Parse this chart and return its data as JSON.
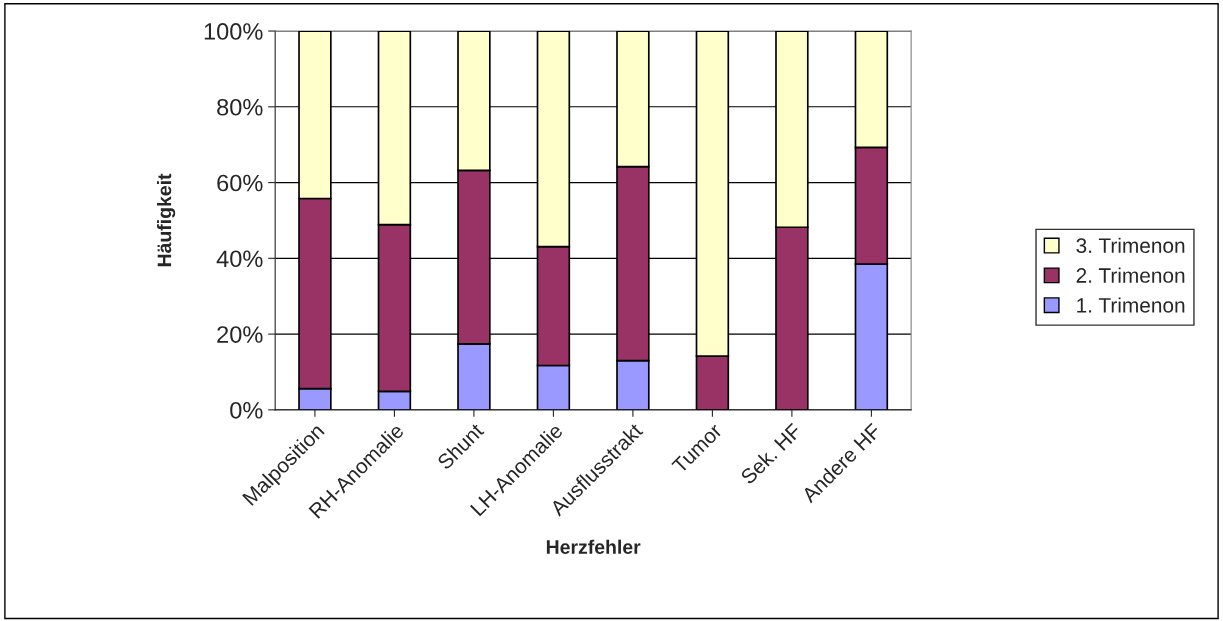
{
  "chart_data": {
    "type": "bar",
    "stacked": true,
    "xlabel": "Herzfehler",
    "ylabel": "Häufigkeit",
    "categories": [
      "Malposition",
      "RH-Anomalie",
      "Shunt",
      "LH-Anomalie",
      "Ausflusstrakt",
      "Tumor",
      "Sek. HF",
      "Andere HF"
    ],
    "series": [
      {
        "name": "1. Trimenon",
        "color": "#9999ff",
        "values": [
          5.6,
          4.9,
          17.4,
          11.7,
          13.0,
          0,
          0,
          38.5
        ]
      },
      {
        "name": "2. Trimenon",
        "color": "#993366",
        "values": [
          50.2,
          44.0,
          45.8,
          31.4,
          51.2,
          14.2,
          48.2,
          30.8
        ]
      },
      {
        "name": "3. Trimenon",
        "color": "#ffffcc",
        "values": [
          44.2,
          51.1,
          36.8,
          56.9,
          35.8,
          85.8,
          51.8,
          30.7
        ]
      }
    ],
    "ylim": [
      0,
      100
    ],
    "yticks": [
      {
        "value": 0,
        "label": "0%"
      },
      {
        "value": 20,
        "label": "20%"
      },
      {
        "value": 40,
        "label": "40%"
      },
      {
        "value": 60,
        "label": "60%"
      },
      {
        "value": 80,
        "label": "80%"
      },
      {
        "value": 100,
        "label": "100%"
      }
    ],
    "grid": "y",
    "legend": "right"
  }
}
